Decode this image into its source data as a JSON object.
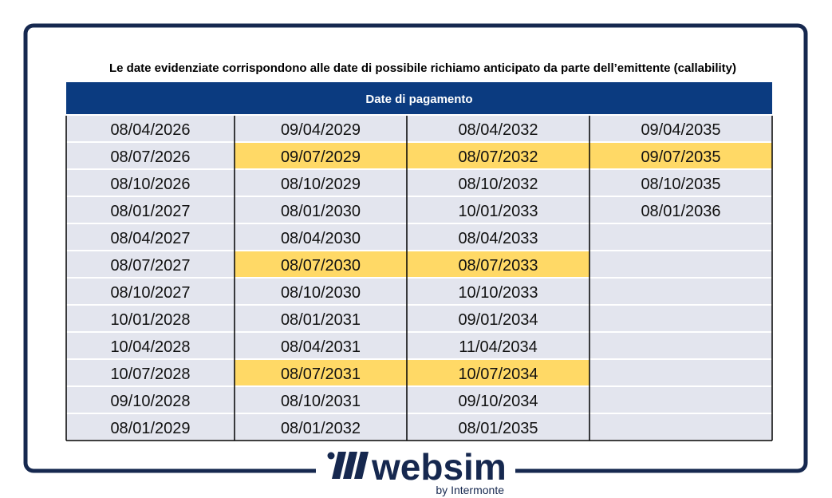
{
  "caption": "Le date evidenziate corrispondono alle date di possibile richiamo anticipato da parte dell’emittente (callability)",
  "table": {
    "header": "Date di pagamento",
    "rows": [
      [
        "08/04/2026",
        "09/04/2029",
        "08/04/2032",
        "09/04/2035"
      ],
      [
        "08/07/2026",
        "09/07/2029",
        "08/07/2032",
        "09/07/2035"
      ],
      [
        "08/10/2026",
        "08/10/2029",
        "08/10/2032",
        "08/10/2035"
      ],
      [
        "08/01/2027",
        "08/01/2030",
        "10/01/2033",
        "08/01/2036"
      ],
      [
        "08/04/2027",
        "08/04/2030",
        "08/04/2033",
        null
      ],
      [
        "08/07/2027",
        "08/07/2030",
        "08/07/2033",
        null
      ],
      [
        "08/10/2027",
        "08/10/2030",
        "10/10/2033",
        null
      ],
      [
        "10/01/2028",
        "08/01/2031",
        "09/01/2034",
        null
      ],
      [
        "10/04/2028",
        "08/04/2031",
        "11/04/2034",
        null
      ],
      [
        "10/07/2028",
        "08/07/2031",
        "10/07/2034",
        null
      ],
      [
        "09/10/2028",
        "08/10/2031",
        "09/10/2034",
        null
      ],
      [
        "08/01/2029",
        "08/01/2032",
        "08/01/2035",
        null
      ]
    ],
    "highlighted_cells": [
      [
        1,
        1
      ],
      [
        1,
        2
      ],
      [
        1,
        3
      ],
      [
        5,
        1
      ],
      [
        5,
        2
      ],
      [
        9,
        1
      ],
      [
        9,
        2
      ]
    ],
    "highlight_color": "#ffd966",
    "cell_color": "#e3e5ee",
    "header_color": "#0b3b80"
  },
  "logo": {
    "name": "websim",
    "tagline": "by Intermonte"
  }
}
